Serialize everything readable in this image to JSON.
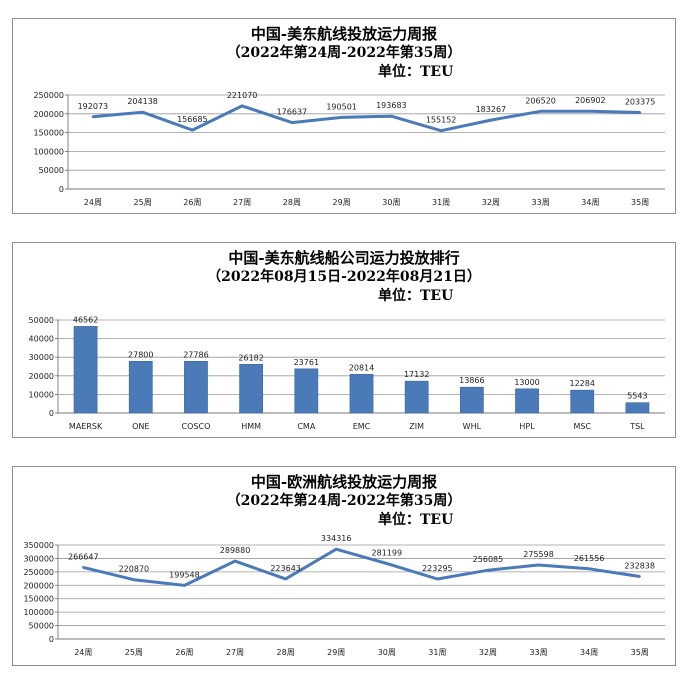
{
  "chart_data": [
    {
      "type": "line",
      "title": "中国-美东航线投放运力周报",
      "subtitle": "（2022年第24周-2022年第35周）",
      "unit": "单位：TEU",
      "categories": [
        "24周",
        "25周",
        "26周",
        "27周",
        "28周",
        "29周",
        "30周",
        "31周",
        "32周",
        "33周",
        "34周",
        "35周"
      ],
      "values": [
        192073,
        204138,
        156685,
        221070,
        176637,
        190501,
        193683,
        155152,
        183267,
        206520,
        206902,
        203375
      ],
      "ylim": [
        0,
        250000
      ],
      "yticks": [
        "250000",
        "200000",
        "150000",
        "100000",
        "50000",
        "0"
      ],
      "grid": true,
      "color": "#4a7ab8"
    },
    {
      "type": "bar",
      "title": "中国-美东航线船公司运力投放排行",
      "subtitle": "（2022年08月15日-2022年08月21日）",
      "unit": "单位：TEU",
      "categories": [
        "MAERSK",
        "ONE",
        "COSCO",
        "HMM",
        "CMA",
        "EMC",
        "ZIM",
        "WHL",
        "HPL",
        "MSC",
        "TSL"
      ],
      "values": [
        46562,
        27800,
        27786,
        26182,
        23761,
        20814,
        17132,
        13866,
        13000,
        12284,
        5543
      ],
      "ylim": [
        0,
        50000
      ],
      "yticks": [
        "50000",
        "40000",
        "30000",
        "20000",
        "10000",
        "0"
      ],
      "grid": true,
      "color": "#4a7ab8"
    },
    {
      "type": "line",
      "title": "中国-欧洲航线投放运力周报",
      "subtitle": "（2022年第24周-2022年第35周）",
      "unit": "单位：TEU",
      "categories": [
        "24周",
        "25周",
        "26周",
        "27周",
        "28周",
        "29周",
        "30周",
        "31周",
        "32周",
        "33周",
        "34周",
        "35周"
      ],
      "values": [
        266647,
        220870,
        199548,
        289880,
        223643,
        334316,
        281199,
        223295,
        256085,
        275598,
        261556,
        232838
      ],
      "ylim": [
        0,
        350000
      ],
      "yticks": [
        "350000",
        "300000",
        "250000",
        "200000",
        "150000",
        "100000",
        "50000",
        "0"
      ],
      "grid": true,
      "color": "#4a7ab8"
    }
  ]
}
